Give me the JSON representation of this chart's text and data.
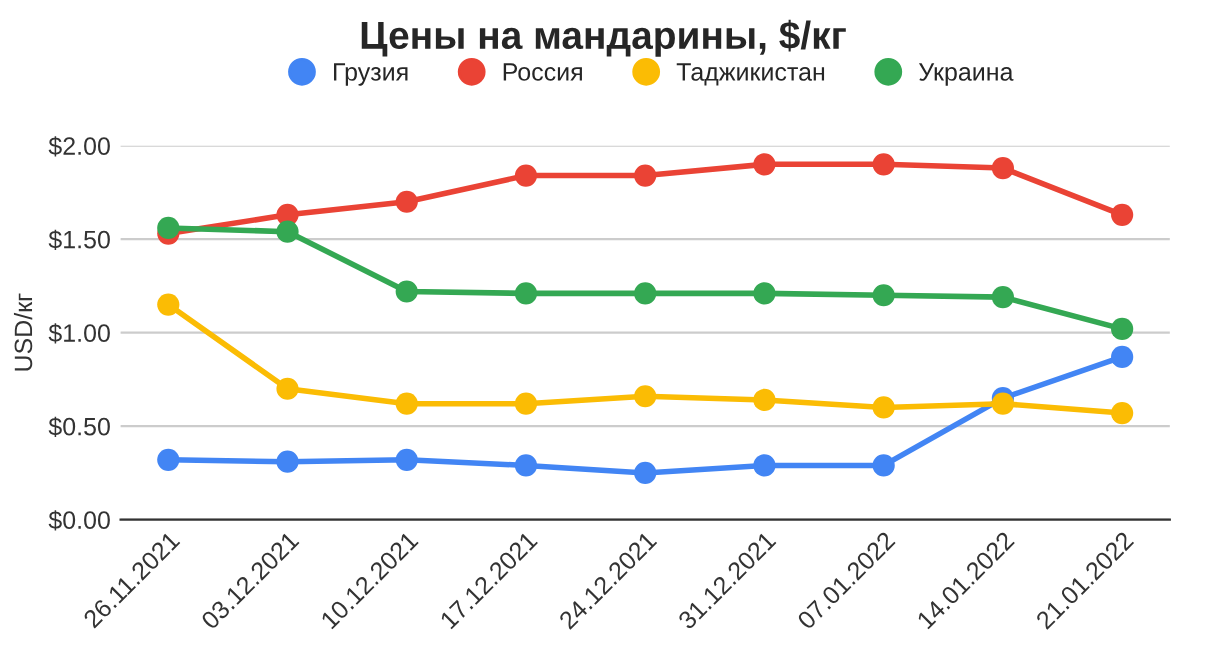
{
  "chart_data": {
    "type": "line",
    "title": "Цены на мандарины, $/кг",
    "ylabel": "USD/кг",
    "categories": [
      "26.11.2021",
      "03.12.2021",
      "10.12.2021",
      "17.12.2021",
      "24.12.2021",
      "31.12.2021",
      "07.01.2022",
      "14.01.2022",
      "21.01.2022"
    ],
    "series": [
      {
        "name": "Грузия",
        "color": "#4285f4",
        "values": [
          0.32,
          0.31,
          0.32,
          0.29,
          0.25,
          0.29,
          0.29,
          0.65,
          0.87
        ]
      },
      {
        "name": "Россия",
        "color": "#ea4335",
        "values": [
          1.53,
          1.63,
          1.7,
          1.84,
          1.84,
          1.9,
          1.9,
          1.88,
          1.63
        ]
      },
      {
        "name": "Таджикистан",
        "color": "#fbbc04",
        "values": [
          1.15,
          0.7,
          0.62,
          0.62,
          0.66,
          0.64,
          0.6,
          0.62,
          0.57
        ]
      },
      {
        "name": "Украина",
        "color": "#34a853",
        "values": [
          1.56,
          1.54,
          1.22,
          1.21,
          1.21,
          1.21,
          1.2,
          1.19,
          1.02
        ]
      }
    ],
    "ylim": [
      0,
      2
    ],
    "yticks": [
      {
        "value": 0,
        "label": "$0.00"
      },
      {
        "value": 0.5,
        "label": "$0.50"
      },
      {
        "value": 1,
        "label": "$1.00"
      },
      {
        "value": 1.5,
        "label": "$1.50"
      },
      {
        "value": 2,
        "label": "$2.00"
      }
    ],
    "grid": "y",
    "legend": "top",
    "marker": "circle",
    "line_style": "solid"
  }
}
